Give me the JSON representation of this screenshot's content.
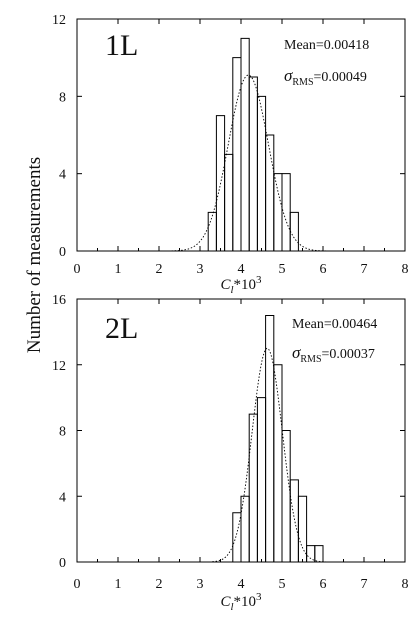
{
  "ylabel": "Number of measurements",
  "chart_data": [
    {
      "type": "bar",
      "panel_label": "1L",
      "mean_text": "Mean=0.00418",
      "sigma_symbol": "σ",
      "sigma_sub": "RMS",
      "sigma_value_text": "=0.00049",
      "xlabel_main": "C",
      "xlabel_sub": "l",
      "xlabel_rest": "*10",
      "xlabel_sup": "3",
      "xlim": [
        0,
        8
      ],
      "ylim": [
        0,
        12
      ],
      "xticks": [
        0,
        1,
        2,
        3,
        4,
        5,
        6,
        7,
        8
      ],
      "yticks": [
        0,
        4,
        8,
        12
      ],
      "bin_width": 0.2,
      "bins": [
        {
          "x0": 3.2,
          "count": 2
        },
        {
          "x0": 3.4,
          "count": 7
        },
        {
          "x0": 3.6,
          "count": 5
        },
        {
          "x0": 3.8,
          "count": 10
        },
        {
          "x0": 4.0,
          "count": 11
        },
        {
          "x0": 4.2,
          "count": 9
        },
        {
          "x0": 4.4,
          "count": 8
        },
        {
          "x0": 4.6,
          "count": 6
        },
        {
          "x0": 4.8,
          "count": 4
        },
        {
          "x0": 5.0,
          "count": 4
        },
        {
          "x0": 5.2,
          "count": 2
        }
      ],
      "fit": {
        "mean": 4.18,
        "sigma": 0.49,
        "peak": 9.1,
        "x_range": [
          2.3,
          6.2
        ]
      }
    },
    {
      "type": "bar",
      "panel_label": "2L",
      "mean_text": "Mean=0.00464",
      "sigma_symbol": "σ",
      "sigma_sub": "RMS",
      "sigma_value_text": "=0.00037",
      "xlabel_main": "C",
      "xlabel_sub": "l",
      "xlabel_rest": "*10",
      "xlabel_sup": "3",
      "xlim": [
        0,
        8
      ],
      "ylim": [
        0,
        16
      ],
      "xticks": [
        0,
        1,
        2,
        3,
        4,
        5,
        6,
        7,
        8
      ],
      "yticks": [
        0,
        4,
        8,
        12,
        16
      ],
      "bin_width": 0.2,
      "bins": [
        {
          "x0": 3.8,
          "count": 3
        },
        {
          "x0": 4.0,
          "count": 4
        },
        {
          "x0": 4.2,
          "count": 9
        },
        {
          "x0": 4.4,
          "count": 10
        },
        {
          "x0": 4.6,
          "count": 15
        },
        {
          "x0": 4.8,
          "count": 12
        },
        {
          "x0": 5.0,
          "count": 8
        },
        {
          "x0": 5.2,
          "count": 5
        },
        {
          "x0": 5.4,
          "count": 4
        },
        {
          "x0": 5.6,
          "count": 1
        },
        {
          "x0": 5.8,
          "count": 1
        }
      ],
      "fit": {
        "mean": 4.64,
        "sigma": 0.37,
        "peak": 13.0,
        "x_range": [
          3.3,
          6.1
        ]
      }
    }
  ]
}
